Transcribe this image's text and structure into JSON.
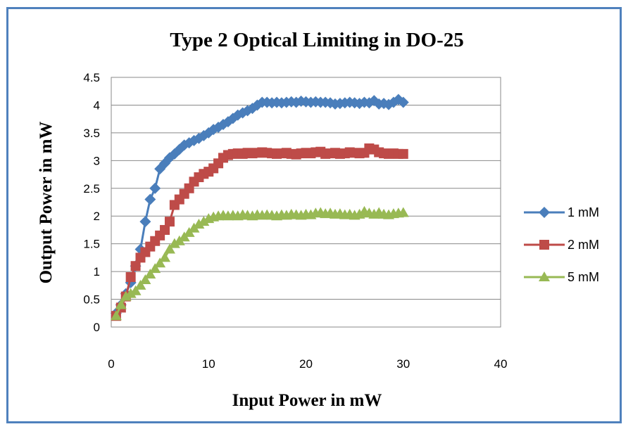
{
  "chart_data": {
    "type": "line",
    "title": "Type 2 Optical Limiting in DO-25",
    "xlabel": "Input Power in mW",
    "ylabel": "Output Power in mW",
    "xlim": [
      0,
      40
    ],
    "ylim": [
      0,
      4.5
    ],
    "x_ticks": [
      "0",
      "10",
      "20",
      "30",
      "40"
    ],
    "y_ticks": [
      "0",
      "0.5",
      "1",
      "1.5",
      "2",
      "2.5",
      "3",
      "3.5",
      "4",
      "4.5"
    ],
    "grid": "horizontal",
    "legend_position": "right",
    "series": [
      {
        "name": "1 mM",
        "color": "#4a7ebb",
        "marker": "diamond",
        "x": [
          0.5,
          1,
          1.5,
          2,
          2.5,
          3,
          3.5,
          4,
          4.5,
          5,
          5.5,
          6,
          6.5,
          7,
          7.5,
          8,
          8.5,
          9,
          9.5,
          10,
          10.5,
          11,
          11.5,
          12,
          12.5,
          13,
          13.5,
          14,
          14.5,
          15,
          15.5,
          16,
          16.5,
          17,
          17.5,
          18,
          18.5,
          19,
          19.5,
          20,
          20.5,
          21,
          21.5,
          22,
          22.5,
          23,
          23.5,
          24,
          24.5,
          25,
          25.5,
          26,
          26.5,
          27,
          27.5,
          28,
          28.5,
          29,
          29.5,
          30
        ],
        "y": [
          0.25,
          0.4,
          0.6,
          0.8,
          1.1,
          1.4,
          1.9,
          2.3,
          2.5,
          2.85,
          2.95,
          3.05,
          3.12,
          3.2,
          3.28,
          3.32,
          3.36,
          3.4,
          3.45,
          3.5,
          3.56,
          3.6,
          3.65,
          3.7,
          3.76,
          3.82,
          3.86,
          3.9,
          3.94,
          4.0,
          4.05,
          4.05,
          4.04,
          4.05,
          4.04,
          4.05,
          4.06,
          4.05,
          4.07,
          4.06,
          4.05,
          4.06,
          4.05,
          4.05,
          4.04,
          4.02,
          4.03,
          4.04,
          4.05,
          4.04,
          4.03,
          4.05,
          4.04,
          4.08,
          4.02,
          4.03,
          4.01,
          4.05,
          4.1,
          4.05
        ]
      },
      {
        "name": "2 mM",
        "color": "#be4b48",
        "marker": "square",
        "x": [
          0.5,
          1,
          1.5,
          2,
          2.5,
          3,
          3.5,
          4,
          4.5,
          5,
          5.5,
          6,
          6.5,
          7,
          7.5,
          8,
          8.5,
          9,
          9.5,
          10,
          10.5,
          11,
          11.5,
          12,
          12.5,
          13,
          13.5,
          14,
          14.5,
          15,
          15.5,
          16,
          16.5,
          17,
          17.5,
          18,
          18.5,
          19,
          19.5,
          20,
          20.5,
          21,
          21.5,
          22,
          22.5,
          23,
          23.5,
          24,
          24.5,
          25,
          25.5,
          26,
          26.5,
          27,
          27.5,
          28,
          28.5,
          29,
          29.5,
          30
        ],
        "y": [
          0.2,
          0.35,
          0.55,
          0.9,
          1.1,
          1.25,
          1.35,
          1.45,
          1.55,
          1.65,
          1.75,
          1.9,
          2.2,
          2.3,
          2.4,
          2.5,
          2.62,
          2.7,
          2.76,
          2.8,
          2.86,
          2.95,
          3.05,
          3.1,
          3.12,
          3.13,
          3.12,
          3.14,
          3.13,
          3.14,
          3.15,
          3.14,
          3.13,
          3.12,
          3.13,
          3.14,
          3.12,
          3.11,
          3.13,
          3.14,
          3.13,
          3.15,
          3.16,
          3.12,
          3.13,
          3.14,
          3.12,
          3.13,
          3.15,
          3.14,
          3.13,
          3.14,
          3.22,
          3.2,
          3.15,
          3.13,
          3.12,
          3.13,
          3.12,
          3.12
        ]
      },
      {
        "name": "5 mM",
        "color": "#98b954",
        "marker": "triangle",
        "x": [
          0.5,
          1,
          1.5,
          2,
          2.5,
          3,
          3.5,
          4,
          4.5,
          5,
          5.5,
          6,
          6.5,
          7,
          7.5,
          8,
          8.5,
          9,
          9.5,
          10,
          10.5,
          11,
          11.5,
          12,
          12.5,
          13,
          13.5,
          14,
          14.5,
          15,
          15.5,
          16,
          16.5,
          17,
          17.5,
          18,
          18.5,
          19,
          19.5,
          20,
          20.5,
          21,
          21.5,
          22,
          22.5,
          23,
          23.5,
          24,
          24.5,
          25,
          25.5,
          26,
          26.5,
          27,
          27.5,
          28,
          28.5,
          29,
          29.5,
          30
        ],
        "y": [
          0.2,
          0.4,
          0.55,
          0.6,
          0.65,
          0.75,
          0.85,
          0.95,
          1.05,
          1.15,
          1.25,
          1.4,
          1.5,
          1.55,
          1.62,
          1.7,
          1.78,
          1.85,
          1.9,
          1.95,
          1.98,
          2.0,
          2.01,
          2.0,
          2.01,
          2.0,
          2.02,
          2.01,
          2.0,
          2.02,
          2.01,
          2.02,
          2.01,
          2.0,
          2.02,
          2.01,
          2.03,
          2.02,
          2.01,
          2.03,
          2.02,
          2.05,
          2.06,
          2.04,
          2.05,
          2.03,
          2.04,
          2.02,
          2.03,
          2.01,
          2.03,
          2.08,
          2.05,
          2.03,
          2.06,
          2.03,
          2.02,
          2.04,
          2.05,
          2.06
        ]
      }
    ]
  }
}
